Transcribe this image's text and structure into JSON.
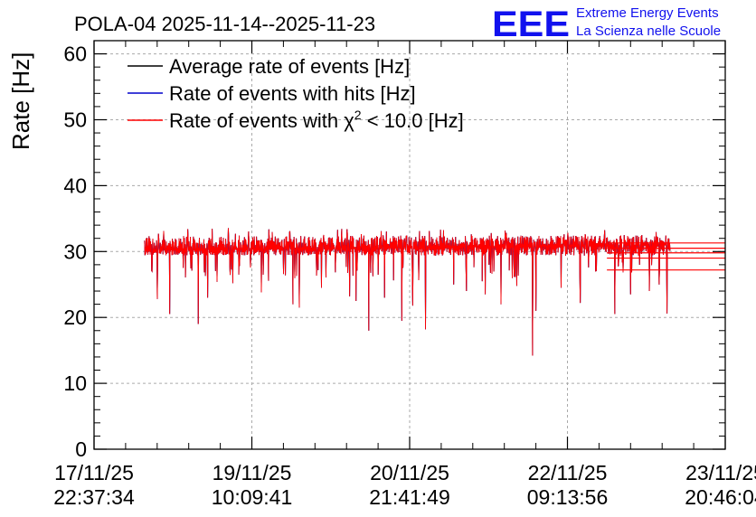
{
  "header": {
    "title": "POLA-04 2025-11-14--2025-11-23",
    "logo_letters": "EEE",
    "logo_line1": "Extreme Energy Events",
    "logo_line2": "La Scienza nelle Scuole"
  },
  "colors": {
    "average": "#000000",
    "hits": "#0000cc",
    "chi2": "#ff0000",
    "grid": "#aaaaaa",
    "logo": "#1111ee"
  },
  "chart_data": {
    "type": "line",
    "title": "POLA-04 2025-11-14--2025-11-23",
    "ylabel": "Rate [Hz]",
    "xlabel": "",
    "ylim": [
      0,
      62
    ],
    "yticks": [
      "0",
      "10",
      "20",
      "30",
      "40",
      "50",
      "60"
    ],
    "ytick_values": [
      0,
      10,
      20,
      30,
      40,
      50,
      60
    ],
    "xlim_index": [
      0,
      4
    ],
    "xticks": [
      {
        "date": "17/11/25",
        "time": "22:37:34"
      },
      {
        "date": "19/11/25",
        "time": "10:09:41"
      },
      {
        "date": "20/11/25",
        "time": "21:41:49"
      },
      {
        "date": "22/11/25",
        "time": "09:13:56"
      },
      {
        "date": "23/11/25",
        "time": "20:46:04"
      }
    ],
    "grid": true,
    "legend": [
      {
        "label": "Average rate of events [Hz]",
        "series": "average"
      },
      {
        "label": "Rate of events with hits [Hz]",
        "series": "hits"
      },
      {
        "label_prefix": "Rate of events with ",
        "label_symbol": "χ",
        "label_sup": "2",
        "label_suffix": " < 10.0 [Hz]",
        "series": "chi2"
      }
    ],
    "legend_position": "top-left",
    "data_range_x": [
      0.32,
      3.65
    ],
    "series_note": "Red series (chi2) overlays black and blue; values fluctuate around 30.5 Hz",
    "baseline": {
      "start": 30.2,
      "end": 31.0
    },
    "noise_band": [
      29.5,
      32.5
    ],
    "dips": [
      {
        "x": 0.4,
        "y": 22.8
      },
      {
        "x": 0.48,
        "y": 20.5
      },
      {
        "x": 0.66,
        "y": 19.0
      },
      {
        "x": 0.72,
        "y": 23.0
      },
      {
        "x": 0.88,
        "y": 25.2
      },
      {
        "x": 1.06,
        "y": 23.8
      },
      {
        "x": 1.26,
        "y": 22.0
      },
      {
        "x": 1.3,
        "y": 21.5
      },
      {
        "x": 1.44,
        "y": 24.5
      },
      {
        "x": 1.62,
        "y": 23.2
      },
      {
        "x": 1.66,
        "y": 22.5
      },
      {
        "x": 1.74,
        "y": 18.0
      },
      {
        "x": 1.84,
        "y": 23.0
      },
      {
        "x": 1.95,
        "y": 19.5
      },
      {
        "x": 2.02,
        "y": 21.8
      },
      {
        "x": 2.1,
        "y": 18.2
      },
      {
        "x": 2.28,
        "y": 25.0
      },
      {
        "x": 2.36,
        "y": 24.0
      },
      {
        "x": 2.46,
        "y": 25.5
      },
      {
        "x": 2.48,
        "y": 23.5
      },
      {
        "x": 2.58,
        "y": 22.0
      },
      {
        "x": 2.68,
        "y": 24.8
      },
      {
        "x": 2.78,
        "y": 14.2
      },
      {
        "x": 2.8,
        "y": 21.0
      },
      {
        "x": 2.96,
        "y": 24.5
      },
      {
        "x": 3.08,
        "y": 22.2
      },
      {
        "x": 3.3,
        "y": 20.5
      },
      {
        "x": 3.4,
        "y": 23.5
      },
      {
        "x": 3.52,
        "y": 24.0
      },
      {
        "x": 3.63,
        "y": 20.6
      },
      {
        "x": 3.58,
        "y": 25.0
      }
    ],
    "tail_lines": [
      31.3,
      30.5,
      29.8,
      29.0,
      27.2
    ],
    "tail_x_end": 4.0
  }
}
